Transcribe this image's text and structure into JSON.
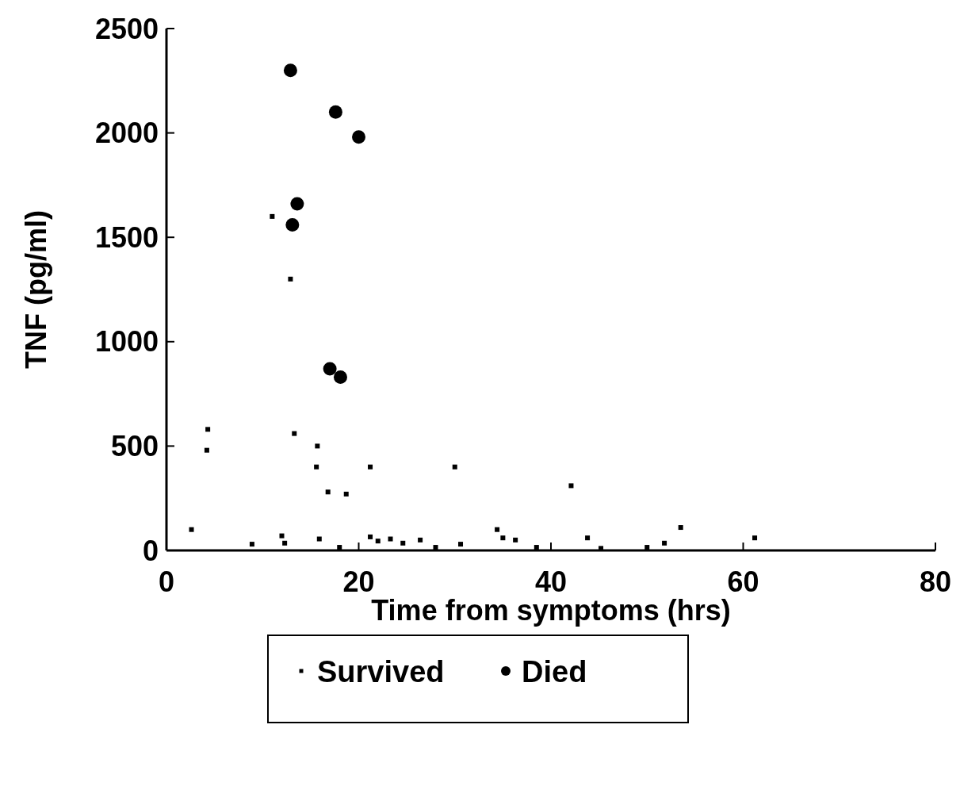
{
  "chart_data": {
    "type": "scatter",
    "xlabel": "Time from symptoms (hrs)",
    "ylabel": "TNF (pg/ml)",
    "xlim": [
      0,
      80
    ],
    "xticks": [
      0,
      20,
      40,
      60,
      80
    ],
    "ylim": [
      0,
      2500
    ],
    "yticks": [
      0,
      500,
      1000,
      1500,
      2000,
      2500
    ],
    "grid": false,
    "legend": "bottom",
    "series": [
      {
        "name": "Survived",
        "color": "#000000",
        "marker": "square",
        "x": [
          2.6,
          4.3,
          4.2,
          8.9,
          11.0,
          12.0,
          12.3,
          12.9,
          13.3,
          15.6,
          15.7,
          15.9,
          16.8,
          18.0,
          18.7,
          21.2,
          21.2,
          22.0,
          23.3,
          24.6,
          26.4,
          28.0,
          30.0,
          30.6,
          34.4,
          35.0,
          36.3,
          38.5,
          42.1,
          43.8,
          45.2,
          50.0,
          51.8,
          53.5,
          61.2
        ],
        "values": [
          100,
          580,
          480,
          30,
          1600,
          70,
          35,
          1300,
          560,
          400,
          500,
          55,
          280,
          15,
          270,
          400,
          65,
          45,
          55,
          35,
          50,
          15,
          400,
          30,
          100,
          60,
          50,
          15,
          310,
          60,
          10,
          15,
          35,
          110,
          60
        ]
      },
      {
        "name": "Died",
        "color": "#000000",
        "marker": "circle",
        "x": [
          12.9,
          13.6,
          13.1,
          17.0,
          18.1,
          17.6,
          20.0
        ],
        "values": [
          2300,
          1660,
          1560,
          870,
          830,
          2100,
          1980
        ]
      }
    ]
  }
}
